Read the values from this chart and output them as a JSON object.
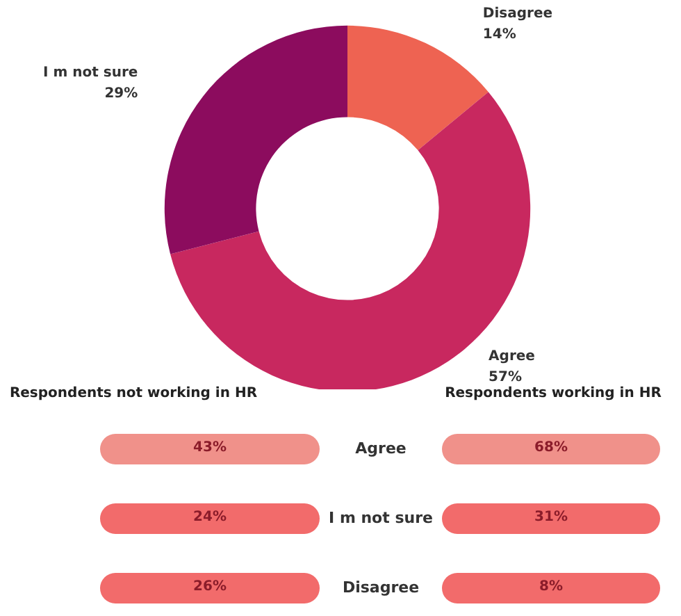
{
  "chart_data": [
    {
      "type": "donut",
      "categories": [
        "Disagree",
        "Agree",
        "I m not sure"
      ],
      "values": [
        14,
        57,
        29
      ],
      "value_labels": [
        "14%",
        "57%",
        "29%"
      ],
      "colors": [
        "#ee6352",
        "#c8285f",
        "#8c0c5e"
      ]
    },
    {
      "type": "other",
      "categories": [
        "Agree",
        "I m not sure",
        "Disagree"
      ],
      "series": [
        {
          "name": "Respondents not working in HR",
          "values": [
            43,
            24,
            26
          ],
          "value_labels": [
            "43%",
            "24%",
            "26%"
          ],
          "colors": [
            "#f0918a",
            "#f26b6b",
            "#f26b6b"
          ]
        },
        {
          "name": "Respondents working in HR",
          "values": [
            68,
            31,
            8
          ],
          "value_labels": [
            "68%",
            "31%",
            "8%"
          ],
          "colors": [
            "#f0918a",
            "#f26b6b",
            "#f26b6b"
          ]
        }
      ]
    }
  ]
}
